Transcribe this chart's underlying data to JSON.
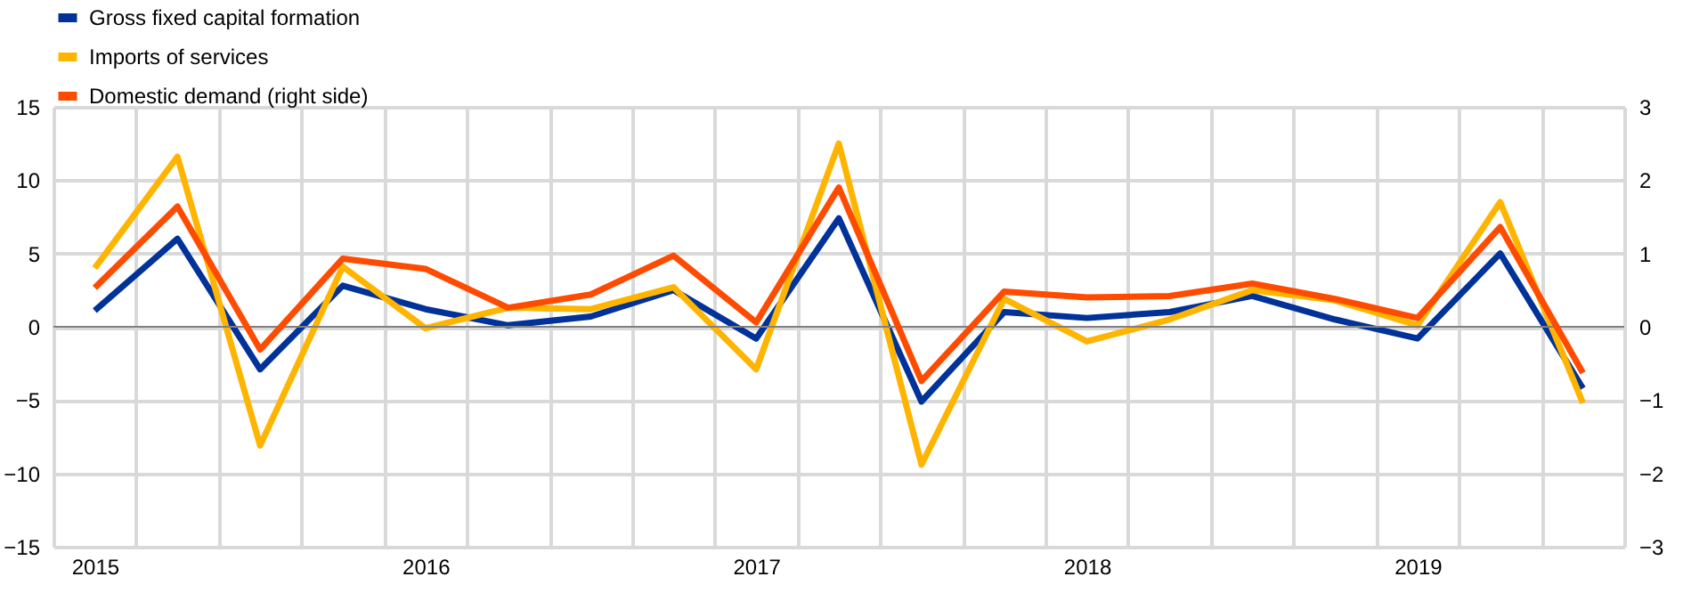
{
  "chart_data": {
    "type": "line",
    "categories": [
      "2015",
      null,
      null,
      null,
      "2016",
      null,
      null,
      null,
      "2017",
      null,
      null,
      null,
      "2018",
      null,
      null,
      null,
      "2019",
      null,
      null
    ],
    "series": [
      {
        "name": "Gross fixed capital formation",
        "color": "#003299",
        "values": [
          1.1,
          6.0,
          -2.9,
          2.8,
          1.2,
          0.1,
          0.7,
          2.5,
          -0.8,
          7.4,
          -5.1,
          1.0,
          0.6,
          1.0,
          2.1,
          0.5,
          -0.8,
          5.0,
          -4.2
        ]
      },
      {
        "name": "Imports of services",
        "color": "#ffb400",
        "values": [
          4.0,
          11.6,
          -8.1,
          4.1,
          -0.1,
          1.3,
          1.2,
          2.7,
          -2.9,
          12.5,
          -9.4,
          1.9,
          -1.0,
          0.5,
          2.5,
          1.8,
          0.1,
          8.5,
          -5.2
        ]
      },
      {
        "name": "Domestic demand (right side)",
        "color": "#ff4b00",
        "axis": "y2",
        "values": [
          0.53,
          1.64,
          -0.31,
          0.93,
          0.79,
          0.26,
          0.44,
          0.97,
          0.06,
          1.9,
          -0.74,
          0.48,
          0.4,
          0.42,
          0.59,
          0.38,
          0.12,
          1.36,
          -0.63
        ]
      }
    ],
    "ylim": [
      -15,
      15
    ],
    "yticks": [
      -15,
      -10,
      -5,
      0,
      5,
      10,
      15
    ],
    "y2lim": [
      -3,
      3
    ],
    "y2ticks": [
      -3,
      -2,
      -1,
      0,
      1,
      2,
      3
    ],
    "ref_lines": [
      {
        "axis": "y",
        "value": 0,
        "color": "#808080"
      }
    ],
    "grid": true,
    "legend": "top left"
  }
}
